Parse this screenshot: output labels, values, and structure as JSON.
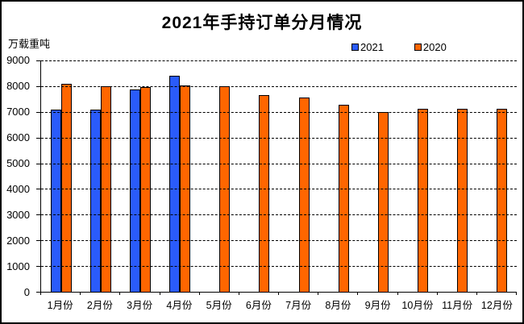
{
  "window": {
    "background_color": "#ffffff",
    "border_color": "#000000"
  },
  "title": "2021年手持订单分月情况",
  "y_axis_unit_label": "万载重吨",
  "legend": {
    "position": "top-right",
    "items": [
      {
        "label": "2021",
        "color": "#2a5bfb"
      },
      {
        "label": "2020",
        "color": "#ff6600"
      }
    ]
  },
  "chart_data": {
    "type": "bar",
    "title": "2021年手持订单分月情况",
    "ylabel": "万载重吨",
    "categories": [
      "1月份",
      "2月份",
      "3月份",
      "4月份",
      "5月份",
      "6月份",
      "7月份",
      "8月份",
      "9月份",
      "10月份",
      "11月份",
      "12月份"
    ],
    "series": [
      {
        "name": "2021",
        "color": "#2a5bfb",
        "values": [
          7100,
          7080,
          7880,
          8400,
          null,
          null,
          null,
          null,
          null,
          null,
          null,
          null
        ]
      },
      {
        "name": "2020",
        "color": "#ff6600",
        "values": [
          8090,
          8010,
          7960,
          8040,
          7990,
          7650,
          7570,
          7280,
          6980,
          7110,
          7110,
          7110
        ]
      }
    ],
    "ylim": [
      0,
      9000
    ],
    "yticks": [
      0,
      1000,
      2000,
      3000,
      4000,
      5000,
      6000,
      7000,
      8000,
      9000
    ],
    "grid": "horizontal-dashed",
    "gridline_color": "#000000",
    "bar_border_color": "#000000",
    "legend_position": "top-right"
  }
}
